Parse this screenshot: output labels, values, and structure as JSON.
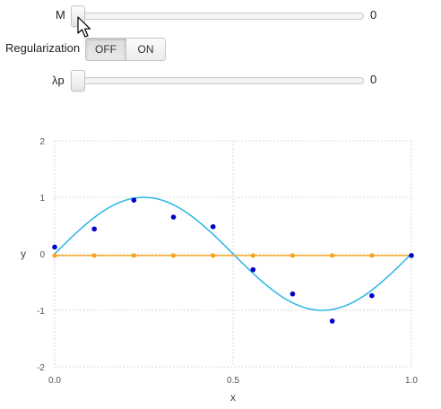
{
  "controls": {
    "m": {
      "label": "M",
      "value": "0"
    },
    "regularization": {
      "label": "Regularization",
      "off_label": "OFF",
      "on_label": "ON",
      "selected": "OFF"
    },
    "lambda": {
      "label": "λp",
      "value": "0"
    }
  },
  "chart_data": {
    "type": "scatter",
    "xlabel": "x",
    "ylabel": "y",
    "xlim": [
      0,
      1
    ],
    "ylim": [
      -2,
      2
    ],
    "x_ticks": [
      0.0,
      0.5,
      1.0
    ],
    "x_tick_labels": [
      "0.0",
      "0.5",
      "1.0"
    ],
    "y_ticks": [
      -2,
      -1,
      0,
      1,
      2
    ],
    "y_tick_labels": [
      "-2",
      "-1",
      "0",
      "1",
      "2"
    ],
    "grid": true,
    "colors": {
      "true_curve": "#29b6e6",
      "samples": "#0000cc",
      "fit": "#f5a623"
    },
    "true_curve": {
      "function": "sin(2*pi*x)",
      "x_range": [
        0,
        1
      ]
    },
    "samples": {
      "x": [
        0.0,
        0.111,
        0.222,
        0.333,
        0.444,
        0.556,
        0.667,
        0.778,
        0.889,
        1.0
      ],
      "y": [
        0.12,
        0.44,
        0.95,
        0.65,
        0.48,
        -0.28,
        -0.71,
        -1.19,
        -0.74,
        -0.03
      ]
    },
    "fit": {
      "x": [
        0.0,
        0.111,
        0.222,
        0.333,
        0.444,
        0.556,
        0.667,
        0.778,
        0.889,
        1.0
      ],
      "y": [
        -0.03,
        -0.03,
        -0.03,
        -0.03,
        -0.03,
        -0.03,
        -0.03,
        -0.03,
        -0.03,
        -0.03
      ]
    }
  }
}
